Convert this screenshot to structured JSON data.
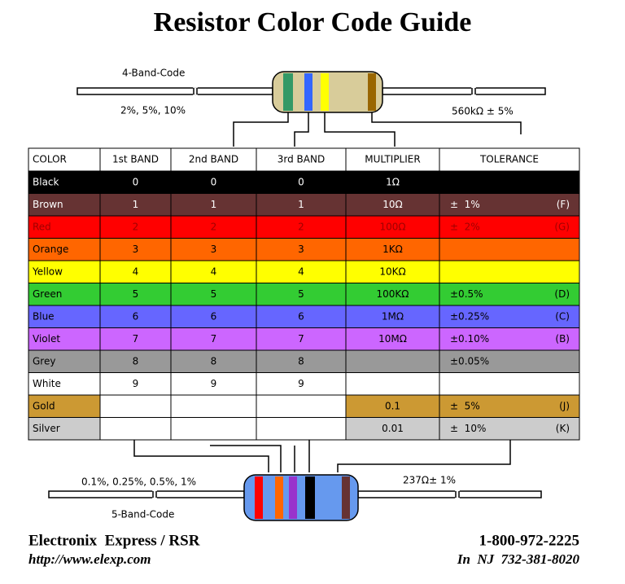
{
  "title": "Resistor Color Code Guide",
  "top": {
    "label": "4-Band-Code",
    "tolerances": "2%, 5%, 10%",
    "example": "560kΩ ± 5%"
  },
  "table": {
    "header": [
      "COLOR",
      "1st BAND",
      "2nd BAND",
      "3rd BAND",
      "MULTIPLIER",
      "TOLERANCE"
    ],
    "rows": [
      {
        "color": "#000000",
        "ink": "#ffffff",
        "cells": [
          "Black",
          0,
          0,
          0,
          "1Ω",
          null,
          null
        ]
      },
      {
        "color": "#663333",
        "ink": "#ffffff",
        "cells": [
          "Brown",
          1,
          1,
          1,
          "10Ω",
          "±  1%",
          "(F)"
        ]
      },
      {
        "color": "#ff0000",
        "ink": "#a00000",
        "cells": [
          "Red",
          2,
          2,
          2,
          "100Ω",
          "±  2%",
          "(G)"
        ]
      },
      {
        "color": "#ff6600",
        "ink": "#000000",
        "cells": [
          "Orange",
          3,
          3,
          3,
          "1KΩ",
          null,
          null
        ]
      },
      {
        "color": "#ffff00",
        "ink": "#000000",
        "cells": [
          "Yellow",
          4,
          4,
          4,
          "10KΩ",
          null,
          null
        ]
      },
      {
        "color": "#33cc33",
        "ink": "#000000",
        "cells": [
          "Green",
          5,
          5,
          5,
          "100KΩ",
          "±0.5%",
          "(D)"
        ]
      },
      {
        "color": "#6666ff",
        "ink": "#000000",
        "cells": [
          "Blue",
          6,
          6,
          6,
          "1MΩ",
          "±0.25%",
          "(C)"
        ]
      },
      {
        "color": "#cc66ff",
        "ink": "#000000",
        "cells": [
          "Violet",
          7,
          7,
          7,
          "10MΩ",
          "±0.10%",
          "(B)"
        ]
      },
      {
        "color": "#999999",
        "ink": "#000000",
        "cells": [
          "Grey",
          8,
          8,
          8,
          null,
          "±0.05%",
          null
        ]
      },
      {
        "color": "#ffffff",
        "ink": "#000000",
        "cells": [
          "White",
          9,
          9,
          9,
          null,
          null,
          null
        ]
      },
      {
        "color": "#cc9933",
        "ink": "#000000",
        "cells": [
          "Gold",
          null,
          null,
          null,
          "0.1",
          "±  5%",
          "(J)"
        ]
      },
      {
        "color": "#cccccc",
        "ink": "#000000",
        "cells": [
          "Silver",
          null,
          null,
          null,
          "0.01",
          "±  10%",
          "(K)"
        ]
      }
    ]
  },
  "bottom": {
    "label": "5-Band-Code",
    "tolerances": "0.1%, 0.25%, 0.5%, 1%",
    "example": "237Ω± 1%"
  },
  "footer": {
    "company": "Electronix  Express / RSR",
    "url": "http://www.elexp.com",
    "phone": "1-800-972-2225",
    "nj": "In  NJ  732-381-8020"
  }
}
